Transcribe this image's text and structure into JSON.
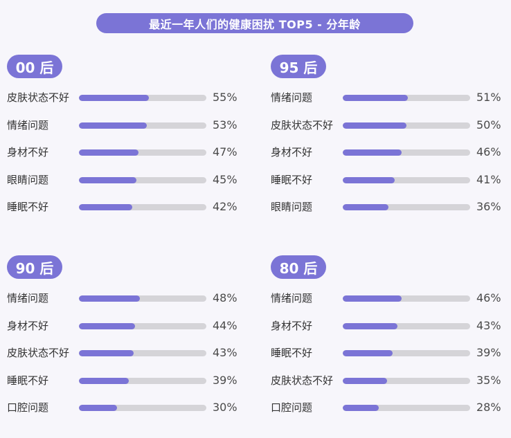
{
  "title": "最近一年人们的健康困扰 TOP5 - 分年龄",
  "colors": {
    "accent": "#7b74d6",
    "track": "#d5d4d8",
    "background": "#f7f6fb"
  },
  "chart_data": [
    {
      "type": "bar",
      "group": "00 后",
      "categories": [
        "皮肤状态不好",
        "情绪问题",
        "身材不好",
        "眼睛问题",
        "睡眠不好"
      ],
      "values": [
        55,
        53,
        47,
        45,
        42
      ],
      "labels": [
        "55%",
        "53%",
        "47%",
        "45%",
        "42%"
      ],
      "ylim": [
        0,
        100
      ]
    },
    {
      "type": "bar",
      "group": "95 后",
      "categories": [
        "情绪问题",
        "皮肤状态不好",
        "身材不好",
        "睡眠不好",
        "眼睛问题"
      ],
      "values": [
        51,
        50,
        46,
        41,
        36
      ],
      "labels": [
        "51%",
        "50%",
        "46%",
        "41%",
        "36%"
      ],
      "ylim": [
        0,
        100
      ]
    },
    {
      "type": "bar",
      "group": "90 后",
      "categories": [
        "情绪问题",
        "身材不好",
        "皮肤状态不好",
        "睡眠不好",
        "口腔问题"
      ],
      "values": [
        48,
        44,
        43,
        39,
        30
      ],
      "labels": [
        "48%",
        "44%",
        "43%",
        "39%",
        "30%"
      ],
      "ylim": [
        0,
        100
      ]
    },
    {
      "type": "bar",
      "group": "80 后",
      "categories": [
        "情绪问题",
        "身材不好",
        "睡眠不好",
        "皮肤状态不好",
        "口腔问题"
      ],
      "values": [
        46,
        43,
        39,
        35,
        28
      ],
      "labels": [
        "46%",
        "43%",
        "39%",
        "35%",
        "28%"
      ],
      "ylim": [
        0,
        100
      ]
    }
  ]
}
